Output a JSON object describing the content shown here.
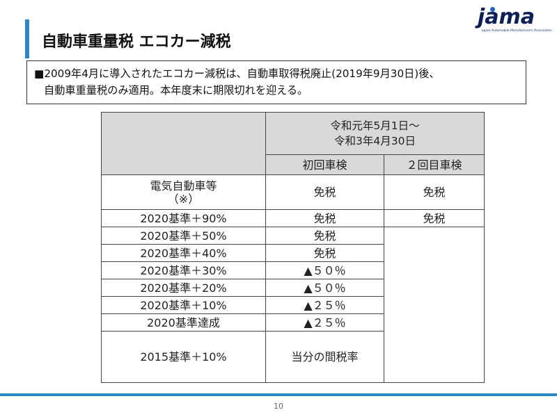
{
  "logo": {
    "word": "jama",
    "subtitle": "Japan Automobile Manufacturers Association"
  },
  "title": "自動車重量税 エコカー減税",
  "summary": {
    "line1": "■2009年4月に導入されたエコカー減税は、自動車取得税廃止(2019年9月30日)後、",
    "line2": "自動車重量税のみ適用。本年度末に期限切れを迎える。"
  },
  "table": {
    "period_line1": "令和元年5月1日～",
    "period_line2": "令和3年4月30日",
    "col_first": "初回車検",
    "col_second": "２回目車検",
    "rows": [
      {
        "label_line1": "電気自動車等",
        "label_line2": "（※）",
        "first": "免税",
        "second": "免税"
      },
      {
        "label": "2020基準＋90%",
        "first": "免税",
        "second": "免税"
      },
      {
        "label": "2020基準＋50%",
        "first": "免税"
      },
      {
        "label": "2020基準＋40%",
        "first": "免税"
      },
      {
        "label": "2020基準＋30%",
        "first": "▲５０％"
      },
      {
        "label": "2020基準＋20%",
        "first": "▲５０％"
      },
      {
        "label": "2020基準＋10%",
        "first": "▲２５％"
      },
      {
        "label": "2020基準達成",
        "first": "▲２５％"
      },
      {
        "label": "2015基準＋10%",
        "first": "当分の間税率"
      }
    ]
  },
  "page_number": "10"
}
